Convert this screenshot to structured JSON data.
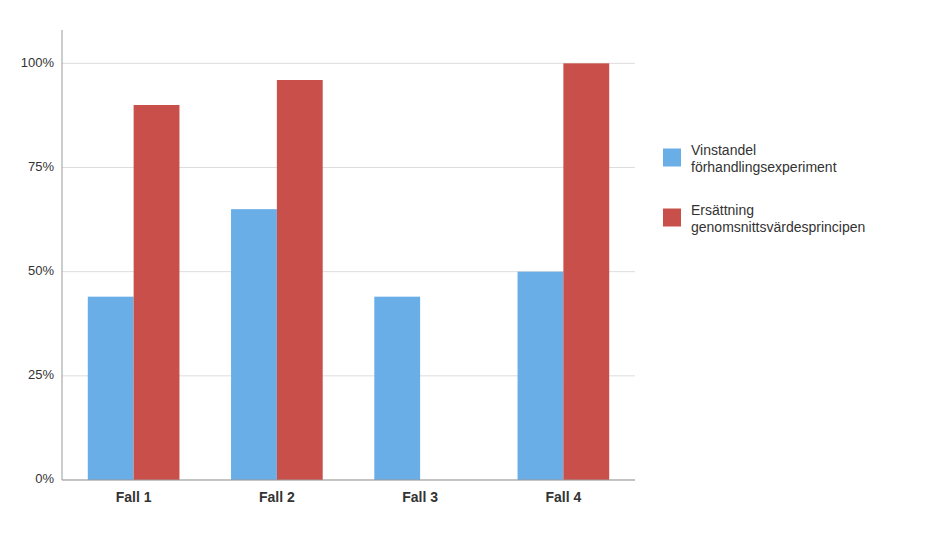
{
  "chart_data": {
    "type": "bar",
    "categories": [
      "Fall 1",
      "Fall 2",
      "Fall 3",
      "Fall 4"
    ],
    "series": [
      {
        "name": "Vinstandel\nförhandlingsexperiment",
        "color": "#6aaee8",
        "values": [
          0.44,
          0.65,
          0.44,
          0.5
        ]
      },
      {
        "name": "Ersättning\ngenomsnittsvärdesprincipen",
        "color": "#c9504a",
        "values": [
          0.9,
          0.96,
          0.0,
          1.0
        ]
      }
    ],
    "ylim": [
      0,
      1.08
    ],
    "yticks": [
      {
        "value": 0,
        "label": "0%"
      },
      {
        "value": 0.25,
        "label": "25%"
      },
      {
        "value": 0.5,
        "label": "50%"
      },
      {
        "value": 0.75,
        "label": "75%"
      },
      {
        "value": 1.0,
        "label": "100%"
      }
    ],
    "grid": true,
    "legend": "right"
  }
}
